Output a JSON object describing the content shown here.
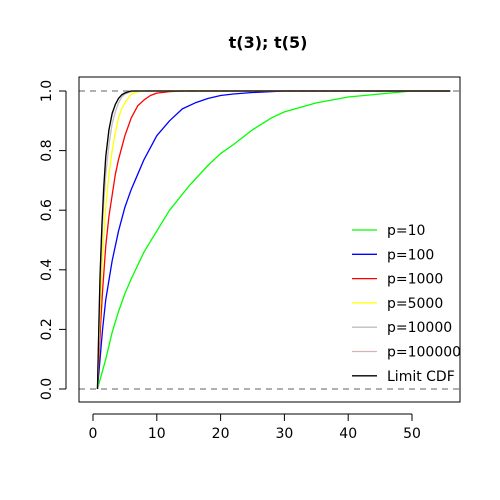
{
  "chart_data": {
    "type": "line",
    "title": "t(3); t(5)",
    "xlabel": "",
    "ylabel": "",
    "xlim": [
      0,
      56
    ],
    "ylim": [
      0,
      1
    ],
    "x_ticks": [
      0,
      10,
      20,
      30,
      40,
      50
    ],
    "y_ticks": [
      0.0,
      0.2,
      0.4,
      0.6,
      0.8,
      1.0
    ],
    "x_tick_labels": [
      "0",
      "10",
      "20",
      "30",
      "40",
      "50"
    ],
    "y_tick_labels": [
      "0.0",
      "0.2",
      "0.4",
      "0.6",
      "0.8",
      "1.0"
    ],
    "reference_lines": [
      0,
      1
    ],
    "legend_position": "bottom-right",
    "series": [
      {
        "name": "p=10",
        "color": "#00ff00",
        "x": [
          0.7,
          2,
          3,
          4,
          5,
          6,
          8,
          10,
          12,
          15,
          18,
          20,
          22,
          25,
          28,
          30,
          35,
          40,
          45,
          50,
          56
        ],
        "y": [
          0.0,
          0.1,
          0.19,
          0.26,
          0.32,
          0.37,
          0.46,
          0.53,
          0.6,
          0.68,
          0.75,
          0.79,
          0.82,
          0.87,
          0.91,
          0.93,
          0.96,
          0.98,
          0.99,
          1.0,
          1.0
        ]
      },
      {
        "name": "p=100",
        "color": "#0000ff",
        "x": [
          0.7,
          1.5,
          2,
          3,
          4,
          5,
          6,
          7,
          8,
          10,
          12,
          14,
          16,
          18,
          20,
          22,
          25,
          28,
          30,
          35,
          56
        ],
        "y": [
          0.0,
          0.2,
          0.3,
          0.43,
          0.53,
          0.61,
          0.67,
          0.72,
          0.77,
          0.85,
          0.9,
          0.94,
          0.96,
          0.975,
          0.985,
          0.99,
          0.995,
          0.998,
          1.0,
          1.0,
          1.0
        ]
      },
      {
        "name": "p=1000",
        "color": "#ff0000",
        "x": [
          0.7,
          1.2,
          1.5,
          2,
          2.5,
          3,
          3.5,
          4,
          5,
          6,
          7,
          8,
          9,
          10,
          12,
          14,
          56
        ],
        "y": [
          0.0,
          0.22,
          0.33,
          0.48,
          0.58,
          0.65,
          0.72,
          0.77,
          0.85,
          0.91,
          0.95,
          0.97,
          0.985,
          0.993,
          0.998,
          1.0,
          1.0
        ]
      },
      {
        "name": "p=5000",
        "color": "#ffff00",
        "x": [
          0.7,
          1.1,
          1.5,
          2,
          2.5,
          3,
          3.5,
          4,
          4.5,
          5,
          6,
          7,
          8,
          56
        ],
        "y": [
          0.0,
          0.25,
          0.45,
          0.61,
          0.72,
          0.8,
          0.86,
          0.91,
          0.94,
          0.96,
          0.99,
          0.997,
          1.0,
          1.0
        ]
      },
      {
        "name": "p=10000",
        "color": "#bebebe",
        "x": [
          0.7,
          1.0,
          1.3,
          1.6,
          2,
          2.5,
          3,
          3.5,
          4,
          4.5,
          5,
          6,
          7,
          56
        ],
        "y": [
          0.0,
          0.25,
          0.45,
          0.6,
          0.72,
          0.82,
          0.89,
          0.93,
          0.96,
          0.98,
          0.99,
          0.998,
          1.0,
          1.0
        ]
      },
      {
        "name": "p=100000",
        "color": "#d2b4b4",
        "x": [
          0.7,
          1.0,
          1.3,
          1.6,
          2,
          2.5,
          3,
          3.5,
          4,
          4.5,
          5,
          6,
          56
        ],
        "y": [
          0.0,
          0.28,
          0.5,
          0.66,
          0.78,
          0.87,
          0.92,
          0.955,
          0.975,
          0.988,
          0.995,
          1.0,
          1.0
        ]
      },
      {
        "name": "Limit CDF",
        "color": "#000000",
        "x": [
          0.7,
          0.9,
          1.1,
          1.4,
          1.7,
          2,
          2.5,
          3,
          3.5,
          4,
          4.5,
          5,
          5.5,
          6,
          56
        ],
        "y": [
          0.0,
          0.2,
          0.38,
          0.55,
          0.68,
          0.78,
          0.87,
          0.925,
          0.955,
          0.975,
          0.987,
          0.993,
          0.997,
          1.0,
          1.0
        ]
      }
    ]
  }
}
